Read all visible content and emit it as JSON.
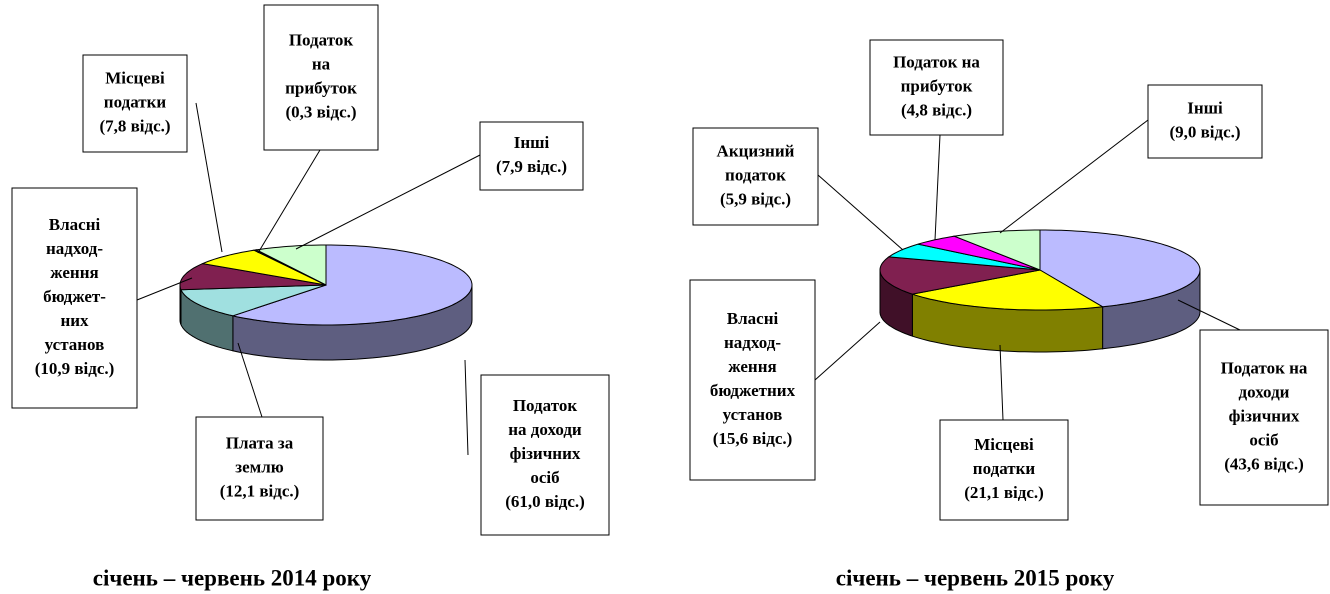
{
  "chart_data": [
    {
      "type": "pie",
      "title": "січень – червень 2014 року",
      "categories": [
        [
          "Податок",
          "на доходи",
          "фізичних",
          "осіб"
        ],
        [
          "Плата за",
          "землю"
        ],
        [
          "Власні",
          "надход-",
          "ження",
          "бюджет-",
          "них",
          "установ"
        ],
        [
          "Місцеві",
          "податки"
        ],
        [
          "Податок",
          "на",
          "прибуток"
        ],
        [
          "Інші"
        ]
      ],
      "values": [
        61.0,
        12.1,
        10.9,
        7.8,
        0.3,
        7.9
      ],
      "value_labels": [
        "(61,0 відс.)",
        "(12,1 відс.)",
        "(10,9 відс.)",
        "(7,8 відс.)",
        "(0,3 відс.)",
        "(7,9 відс.)"
      ],
      "colors": [
        "#bbbbff",
        "#a0e0e0",
        "#802050",
        "#ffff00",
        "#222222",
        "#ccffcc"
      ]
    },
    {
      "type": "pie",
      "title": "січень – червень 2015 року",
      "categories": [
        [
          "Податок на",
          "доходи",
          "фізичних",
          "осіб"
        ],
        [
          "Місцеві",
          "податки"
        ],
        [
          "Власні",
          "надход-",
          "ження",
          "бюджетних",
          "установ"
        ],
        [
          "Акцизний",
          "податок"
        ],
        [
          "Податок на",
          "прибуток"
        ],
        [
          "Інші"
        ]
      ],
      "values": [
        43.6,
        21.1,
        15.6,
        5.9,
        4.8,
        9.0
      ],
      "value_labels": [
        "(43,6 відс.)",
        "(21,1 відс.)",
        "(15,6 відс.)",
        "(5,9 відс.)",
        "(4,8 відс.)",
        "(9,0 відс.)"
      ],
      "colors": [
        "#bbbbff",
        "#ffff00",
        "#802050",
        "#00ffff",
        "#ff00ff",
        "#ccffcc"
      ]
    }
  ]
}
